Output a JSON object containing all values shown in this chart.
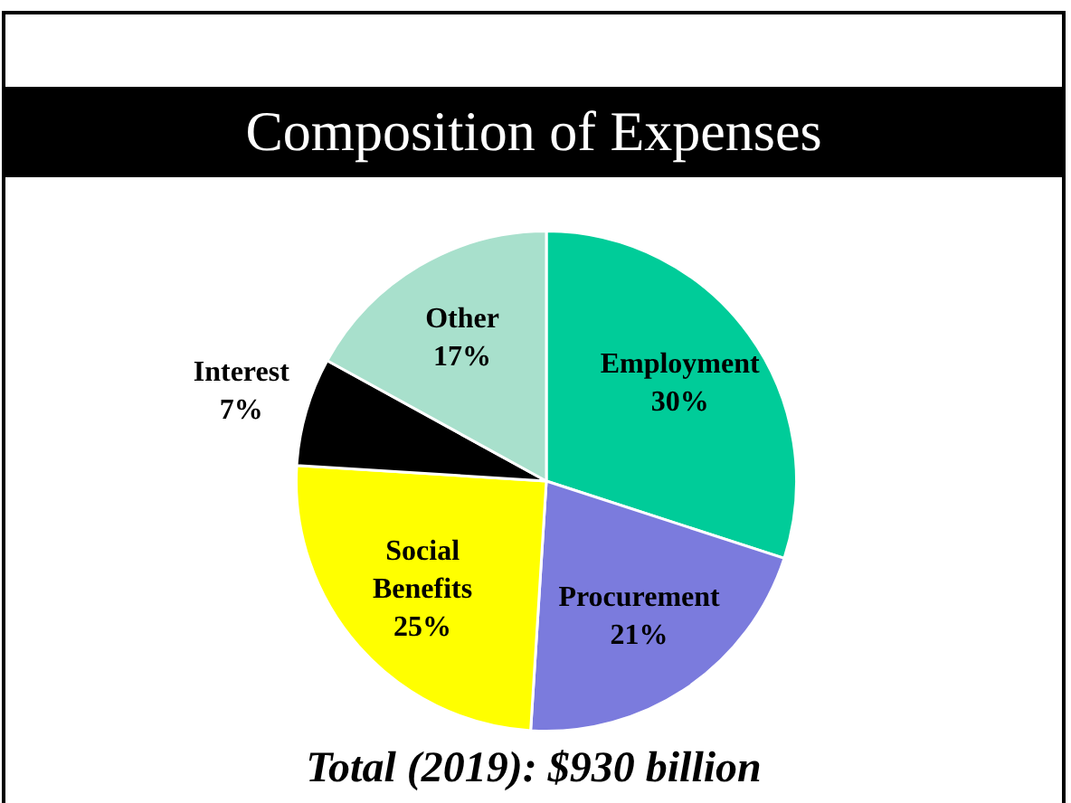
{
  "chart_data": {
    "type": "pie",
    "title": "Composition of Expenses",
    "categories": [
      "Employment",
      "Procurement",
      "Social Benefits",
      "Interest",
      "Other"
    ],
    "values": [
      30,
      21,
      25,
      7,
      17
    ],
    "colors": [
      "#00cc99",
      "#7b7bdd",
      "#ffff00",
      "#000000",
      "#a8e0cc"
    ],
    "value_labels": [
      "30%",
      "21%",
      "25%",
      "7%",
      "17%"
    ],
    "legend": false,
    "annotations": [
      "Total (2019): $930 billion"
    ]
  }
}
